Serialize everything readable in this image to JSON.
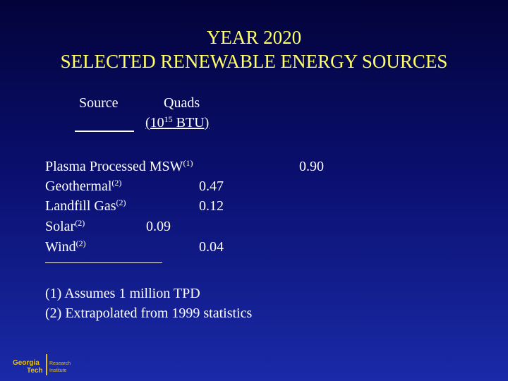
{
  "title": {
    "line1": "YEAR 2020",
    "line2": "SELECTED RENEWABLE ENERGY SOURCES"
  },
  "table": {
    "header_source": "Source",
    "header_quads": "Quads",
    "header_units_prefix": "(10",
    "header_units_exp": "15",
    "header_units_suffix": " BTU)",
    "rows": [
      {
        "source": "Plasma Processed MSW",
        "note": "(1)",
        "value": "0.90"
      },
      {
        "source": "Geothermal",
        "note": "(2)",
        "value": "0.47"
      },
      {
        "source": "Landfill Gas",
        "note": "(2)",
        "value": "0.12"
      },
      {
        "source": "Solar",
        "note": "(2)",
        "value": "0.09"
      },
      {
        "source": "Wind",
        "note": "(2)",
        "value": "0.04"
      }
    ]
  },
  "footnotes": [
    "(1)  Assumes 1 million TPD",
    "(2)  Extrapolated from 1999 statistics"
  ],
  "logo": {
    "left_text": "Georgia Tech",
    "right_text": "Research Institute",
    "color_left": "#e8c200",
    "color_right": "#e8c200"
  },
  "colors": {
    "title": "#ffff66",
    "text": "#ffffff",
    "bg_top": "#03033a",
    "bg_bottom": "#1a2aa8"
  }
}
